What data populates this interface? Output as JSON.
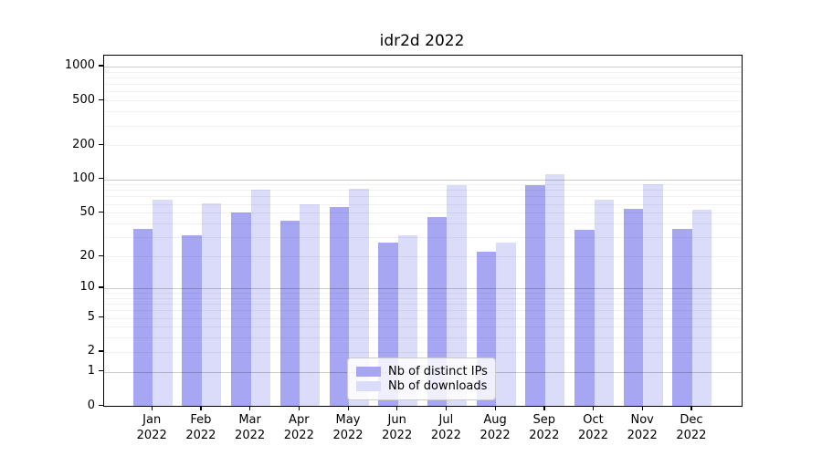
{
  "chart_data": {
    "type": "bar",
    "title": "idr2d 2022",
    "year_label": "2022",
    "categories": [
      "Jan",
      "Feb",
      "Mar",
      "Apr",
      "May",
      "Jun",
      "Jul",
      "Aug",
      "Sep",
      "Oct",
      "Nov",
      "Dec"
    ],
    "series": [
      {
        "name": "Nb of distinct IPs",
        "color": "#a6a6f2",
        "values": [
          36,
          31,
          50,
          42,
          56,
          27,
          46,
          22,
          89,
          35,
          54,
          36
        ]
      },
      {
        "name": "Nb of downloads",
        "color": "#dbdbfa",
        "values": [
          65,
          61,
          80,
          60,
          82,
          31,
          88,
          27,
          110,
          65,
          91,
          53
        ]
      }
    ],
    "yscale": "log1p",
    "yticks": [
      0,
      1,
      2,
      5,
      10,
      20,
      50,
      100,
      200,
      500,
      1000
    ],
    "ylim": [
      0,
      1200
    ],
    "xlabel": "",
    "ylabel": "",
    "grid": "both",
    "legend_position": "lower center"
  }
}
